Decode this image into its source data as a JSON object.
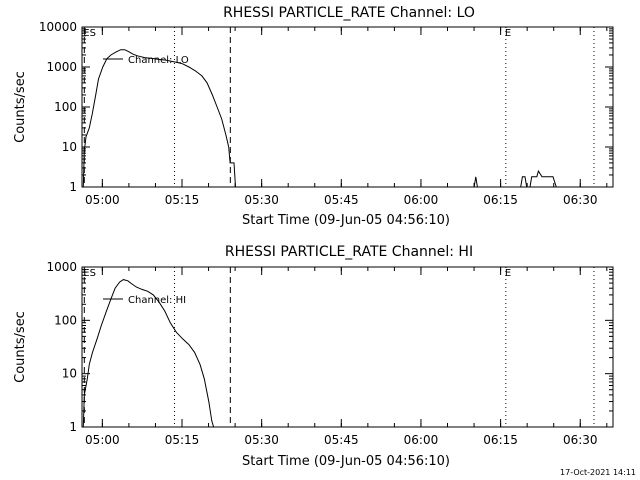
{
  "chart_data": [
    {
      "type": "line",
      "title": "RHESSI PARTICLE_RATE Channel: LO",
      "xlabel": "Start Time (09-Jun-05 04:56:10)",
      "ylabel": "Counts/sec",
      "y_scale": "log",
      "ylim": [
        1,
        10000
      ],
      "xlim": [
        "04:56:10",
        "06:36:10"
      ],
      "y_ticks": [
        "1",
        "10",
        "100",
        "1000",
        "10000"
      ],
      "x_ticks": [
        "05:00",
        "05:15",
        "05:30",
        "05:45",
        "06:00",
        "06:15",
        "06:30"
      ],
      "legend": {
        "label": "Channel: LO",
        "placement": "top-left"
      },
      "markers": [
        {
          "label": "ES",
          "time": "04:56:36",
          "style": "dashed"
        },
        {
          "label": "",
          "time": "05:24:06",
          "style": "dashed"
        },
        {
          "label": "",
          "time": "05:13:35",
          "style": "dotted"
        },
        {
          "label": "E",
          "time": "06:15:59",
          "style": "dotted"
        },
        {
          "label": "",
          "time": "06:32:35",
          "style": "dotted"
        }
      ],
      "series": [
        {
          "name": "Channel: LO",
          "segments": [
            [
              [
                "04:56:25",
                1
              ],
              [
                "04:56:36",
                8
              ],
              [
                "04:56:55",
                18
              ],
              [
                "04:57:32",
                30
              ],
              [
                "04:58:07",
                70
              ],
              [
                "04:58:45",
                200
              ],
              [
                "04:59:17",
                500
              ],
              [
                "05:00:05",
                1000
              ],
              [
                "05:00:50",
                1600
              ],
              [
                "05:01:36",
                2000
              ],
              [
                "05:02:38",
                2400
              ],
              [
                "05:03:28",
                2700
              ],
              [
                "05:04:13",
                2700
              ],
              [
                "05:05:01",
                2400
              ],
              [
                "05:05:44",
                2100
              ],
              [
                "05:06:35",
                1900
              ],
              [
                "05:07:23",
                1800
              ],
              [
                "05:08:07",
                1700
              ],
              [
                "05:08:58",
                1650
              ],
              [
                "05:09:49",
                1600
              ],
              [
                "05:10:38",
                1550
              ],
              [
                "05:11:48",
                1500
              ],
              [
                "05:12:59",
                1400
              ],
              [
                "05:14:01",
                1300
              ],
              [
                "05:15:07",
                1200
              ],
              [
                "05:16:18",
                1000
              ],
              [
                "05:17:31",
                800
              ],
              [
                "05:18:45",
                600
              ],
              [
                "05:19:44",
                400
              ],
              [
                "05:20:43",
                200
              ],
              [
                "05:21:36",
                100
              ],
              [
                "05:22:29",
                50
              ],
              [
                "05:23:16",
                20
              ],
              [
                "05:23:48",
                10
              ],
              [
                "05:24:04",
                4
              ],
              [
                "05:24:47",
                4
              ],
              [
                "05:25:04",
                1
              ]
            ],
            [
              [
                "06:10:01",
                1
              ],
              [
                "06:10:20",
                1.8
              ],
              [
                "06:10:38",
                1
              ]
            ],
            [
              [
                "06:18:47",
                1
              ],
              [
                "06:19:06",
                1.8
              ],
              [
                "06:19:36",
                1.8
              ],
              [
                "06:19:55",
                1
              ],
              [
                "06:20:32",
                1
              ],
              [
                "06:20:51",
                1.8
              ],
              [
                "06:21:49",
                1.8
              ],
              [
                "06:22:07",
                2.5
              ],
              [
                "06:22:48",
                1.8
              ],
              [
                "06:24:52",
                1.8
              ],
              [
                "06:25:29",
                1
              ]
            ]
          ]
        }
      ]
    },
    {
      "type": "line",
      "title": "RHESSI PARTICLE_RATE Channel: HI",
      "xlabel": "Start Time (09-Jun-05 04:56:10)",
      "ylabel": "Counts/sec",
      "y_scale": "log",
      "ylim": [
        1,
        1000
      ],
      "xlim": [
        "04:56:10",
        "06:36:10"
      ],
      "y_ticks": [
        "1",
        "10",
        "100",
        "1000"
      ],
      "x_ticks": [
        "05:00",
        "05:15",
        "05:30",
        "05:45",
        "06:00",
        "06:15",
        "06:30"
      ],
      "legend": {
        "label": "Channel: HI",
        "placement": "top-left"
      },
      "markers": [
        {
          "label": "ES",
          "time": "04:56:36",
          "style": "dashed"
        },
        {
          "label": "",
          "time": "05:24:06",
          "style": "dashed"
        },
        {
          "label": "",
          "time": "05:13:35",
          "style": "dotted"
        },
        {
          "label": "E",
          "time": "06:15:59",
          "style": "dotted"
        },
        {
          "label": "",
          "time": "06:32:35",
          "style": "dotted"
        }
      ],
      "series": [
        {
          "name": "Channel: HI",
          "segments": [
            [
              [
                "04:56:25",
                1
              ],
              [
                "04:56:36",
                4
              ],
              [
                "04:57:10",
                8
              ],
              [
                "04:57:32",
                15
              ],
              [
                "04:58:09",
                25
              ],
              [
                "04:59:01",
                45
              ],
              [
                "04:59:48",
                80
              ],
              [
                "05:00:47",
                150
              ],
              [
                "05:01:36",
                250
              ],
              [
                "05:02:24",
                400
              ],
              [
                "05:03:15",
                520
              ],
              [
                "05:03:58",
                580
              ],
              [
                "05:04:47",
                550
              ],
              [
                "05:05:35",
                480
              ],
              [
                "05:06:26",
                420
              ],
              [
                "05:07:28",
                380
              ],
              [
                "05:08:32",
                350
              ],
              [
                "05:09:36",
                300
              ],
              [
                "05:10:40",
                220
              ],
              [
                "05:11:44",
                150
              ],
              [
                "05:12:48",
                90
              ],
              [
                "05:13:55",
                60
              ],
              [
                "05:15:07",
                45
              ],
              [
                "05:16:18",
                35
              ],
              [
                "05:17:22",
                25
              ],
              [
                "05:18:23",
                15
              ],
              [
                "05:19:12",
                8
              ],
              [
                "05:20:03",
                3
              ],
              [
                "05:20:37",
                1.3
              ],
              [
                "05:20:57",
                1
              ]
            ]
          ]
        }
      ]
    }
  ],
  "footer": {
    "timestamp": "17-Oct-2021 14:11"
  }
}
